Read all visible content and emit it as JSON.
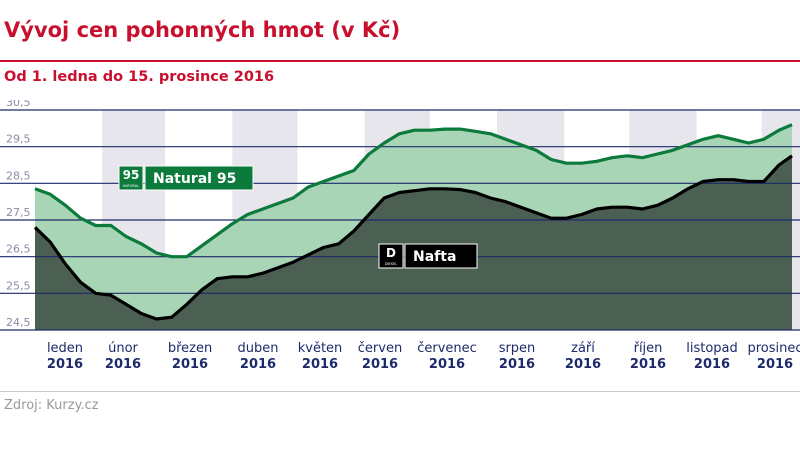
{
  "title": "Vývoj cen pohonných hmot (v Kč)",
  "subtitle": "Od 1. ledna do 15. prosince 2016",
  "source": "Zdroj: Kurzy.cz",
  "colors": {
    "brand_red": "#c8102e",
    "natural95_line": "#0b7a3b",
    "natural95_fill": "#a8d5b6",
    "nafta_line": "#000000",
    "nafta_fill": "#4b5f52",
    "month_band": "#e6e6ec",
    "grid": "#1d2a6b",
    "axis_text": "#8a8aa6",
    "month_text": "#1d2a6b"
  },
  "chart_data": {
    "type": "area",
    "ylim": [
      24.5,
      30.5
    ],
    "yticks": [
      "24,5",
      "25,5",
      "26,5",
      "27,5",
      "28,5",
      "29,5",
      "30,5"
    ],
    "months": [
      {
        "name": "leden",
        "year": "2016"
      },
      {
        "name": "únor",
        "year": "2016"
      },
      {
        "name": "březen",
        "year": "2016"
      },
      {
        "name": "duben",
        "year": "2016"
      },
      {
        "name": "květen",
        "year": "2016"
      },
      {
        "name": "červen",
        "year": "2016"
      },
      {
        "name": "červenec",
        "year": "2016"
      },
      {
        "name": "srpen",
        "year": "2016"
      },
      {
        "name": "září",
        "year": "2016"
      },
      {
        "name": "říjen",
        "year": "2016"
      },
      {
        "name": "listopad",
        "year": "2016"
      },
      {
        "name": "prosinec",
        "year": "2016"
      }
    ],
    "x_unit": "day of year 2016",
    "series": [
      {
        "name": "Natural 95",
        "badge": "95",
        "badge_sub": "NATURAL",
        "points": [
          [
            1,
            28.35
          ],
          [
            8,
            28.2
          ],
          [
            15,
            27.9
          ],
          [
            22,
            27.55
          ],
          [
            29,
            27.35
          ],
          [
            36,
            27.35
          ],
          [
            43,
            27.05
          ],
          [
            50,
            26.85
          ],
          [
            57,
            26.6
          ],
          [
            64,
            26.5
          ],
          [
            71,
            26.5
          ],
          [
            78,
            26.8
          ],
          [
            85,
            27.1
          ],
          [
            92,
            27.4
          ],
          [
            99,
            27.65
          ],
          [
            106,
            27.8
          ],
          [
            113,
            27.95
          ],
          [
            120,
            28.1
          ],
          [
            127,
            28.4
          ],
          [
            134,
            28.55
          ],
          [
            141,
            28.7
          ],
          [
            148,
            28.85
          ],
          [
            155,
            29.3
          ],
          [
            162,
            29.6
          ],
          [
            169,
            29.85
          ],
          [
            176,
            29.95
          ],
          [
            183,
            29.95
          ],
          [
            190,
            29.98
          ],
          [
            197,
            29.98
          ],
          [
            204,
            29.92
          ],
          [
            211,
            29.85
          ],
          [
            218,
            29.7
          ],
          [
            225,
            29.55
          ],
          [
            232,
            29.4
          ],
          [
            239,
            29.15
          ],
          [
            246,
            29.05
          ],
          [
            253,
            29.05
          ],
          [
            260,
            29.1
          ],
          [
            267,
            29.2
          ],
          [
            274,
            29.25
          ],
          [
            281,
            29.2
          ],
          [
            288,
            29.3
          ],
          [
            295,
            29.4
          ],
          [
            302,
            29.55
          ],
          [
            309,
            29.7
          ],
          [
            316,
            29.8
          ],
          [
            323,
            29.7
          ],
          [
            330,
            29.6
          ],
          [
            337,
            29.7
          ],
          [
            344,
            29.95
          ],
          [
            350,
            30.1
          ]
        ]
      },
      {
        "name": "Nafta",
        "badge": "D",
        "badge_sub": "DIESEL",
        "points": [
          [
            1,
            27.3
          ],
          [
            8,
            26.9
          ],
          [
            15,
            26.3
          ],
          [
            22,
            25.8
          ],
          [
            29,
            25.5
          ],
          [
            36,
            25.45
          ],
          [
            43,
            25.2
          ],
          [
            50,
            24.95
          ],
          [
            57,
            24.8
          ],
          [
            64,
            24.85
          ],
          [
            71,
            25.2
          ],
          [
            78,
            25.6
          ],
          [
            85,
            25.9
          ],
          [
            92,
            25.95
          ],
          [
            99,
            25.95
          ],
          [
            106,
            26.05
          ],
          [
            113,
            26.2
          ],
          [
            120,
            26.35
          ],
          [
            127,
            26.55
          ],
          [
            134,
            26.75
          ],
          [
            141,
            26.85
          ],
          [
            148,
            27.2
          ],
          [
            155,
            27.65
          ],
          [
            162,
            28.1
          ],
          [
            169,
            28.25
          ],
          [
            176,
            28.3
          ],
          [
            183,
            28.35
          ],
          [
            190,
            28.35
          ],
          [
            197,
            28.33
          ],
          [
            204,
            28.25
          ],
          [
            211,
            28.1
          ],
          [
            218,
            28.0
          ],
          [
            225,
            27.85
          ],
          [
            232,
            27.7
          ],
          [
            239,
            27.55
          ],
          [
            246,
            27.55
          ],
          [
            253,
            27.65
          ],
          [
            260,
            27.8
          ],
          [
            267,
            27.85
          ],
          [
            274,
            27.85
          ],
          [
            281,
            27.8
          ],
          [
            288,
            27.9
          ],
          [
            295,
            28.1
          ],
          [
            302,
            28.35
          ],
          [
            309,
            28.55
          ],
          [
            316,
            28.6
          ],
          [
            323,
            28.6
          ],
          [
            330,
            28.55
          ],
          [
            337,
            28.55
          ],
          [
            344,
            29.0
          ],
          [
            350,
            29.25
          ]
        ]
      }
    ]
  }
}
